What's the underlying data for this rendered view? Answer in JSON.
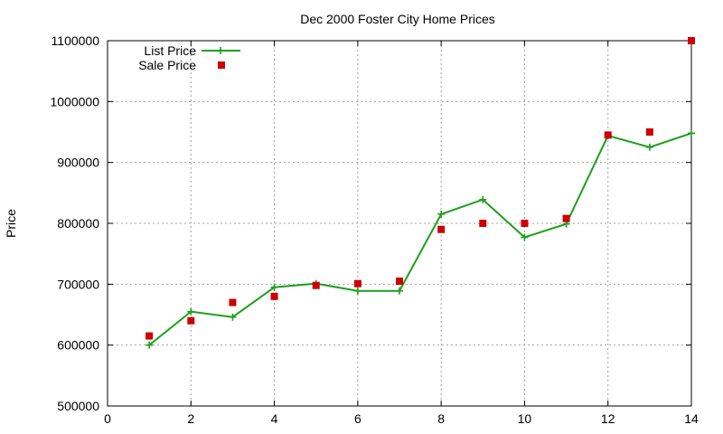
{
  "chart_data": {
    "type": "line",
    "title": "Dec 2000 Foster City Home Prices",
    "xlabel": "",
    "ylabel": "Price",
    "xlim": [
      0,
      14
    ],
    "ylim": [
      500000,
      1100000
    ],
    "xticks": [
      0,
      2,
      4,
      6,
      8,
      10,
      12,
      14
    ],
    "yticks": [
      500000,
      600000,
      700000,
      800000,
      900000,
      1000000,
      1100000
    ],
    "grid": true,
    "legend_position": "top-left",
    "series": [
      {
        "name": "List Price",
        "style": "line+marker",
        "color": "#1aa01a",
        "x": [
          1,
          2,
          3,
          4,
          5,
          6,
          7,
          8,
          9,
          10,
          11,
          12,
          13,
          14
        ],
        "y": [
          600000,
          655000,
          646000,
          695000,
          701000,
          689000,
          689000,
          815000,
          839000,
          777000,
          799000,
          944000,
          925000,
          948000
        ]
      },
      {
        "name": "Sale Price",
        "style": "points",
        "color": "#cc0000",
        "x": [
          1,
          2,
          3,
          4,
          5,
          6,
          7,
          8,
          9,
          10,
          11,
          12,
          13,
          14
        ],
        "y": [
          615000,
          640000,
          670000,
          680000,
          698000,
          701000,
          705000,
          790000,
          800000,
          800000,
          808000,
          945000,
          950000,
          1100000
        ]
      }
    ]
  }
}
